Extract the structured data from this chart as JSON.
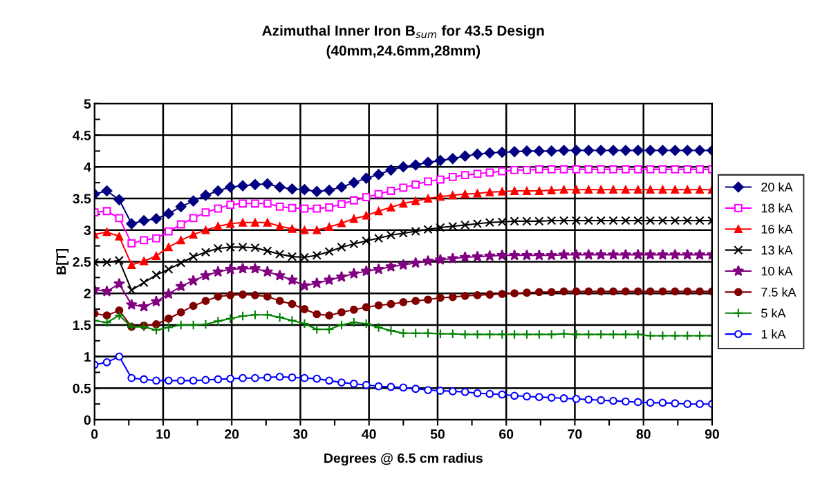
{
  "chart_data": {
    "type": "line",
    "title": "Azimuthal Inner Iron B$_{sum}$ for 43.5 Design\n(40mm,24.6mm,28mm)",
    "xlabel": "Degrees @ 6.5 cm radius",
    "ylabel": "B[T]",
    "x": [
      0,
      1.8,
      3.6,
      5.4,
      7.2,
      9,
      10.8,
      12.6,
      14.4,
      16.2,
      18,
      19.8,
      21.6,
      23.4,
      25.2,
      27,
      28.8,
      30.6,
      32.4,
      34.2,
      36,
      37.8,
      39.6,
      41.4,
      43.2,
      45,
      46.8,
      48.6,
      50.4,
      52.2,
      54,
      55.8,
      57.6,
      59.4,
      61.2,
      63,
      64.8,
      66.6,
      68.4,
      70.2,
      72,
      73.8,
      75.6,
      77.4,
      79.2,
      81,
      82.8,
      84.6,
      86.4,
      88.2,
      90
    ],
    "series": [
      {
        "name": "20 kA",
        "color": "#000080",
        "marker": "diamond",
        "values": [
          3.57,
          3.62,
          3.48,
          3.1,
          3.15,
          3.18,
          3.26,
          3.37,
          3.46,
          3.55,
          3.62,
          3.68,
          3.7,
          3.72,
          3.73,
          3.68,
          3.65,
          3.64,
          3.61,
          3.63,
          3.68,
          3.75,
          3.82,
          3.88,
          3.95,
          4.0,
          4.03,
          4.07,
          4.1,
          4.13,
          4.17,
          4.2,
          4.22,
          4.23,
          4.24,
          4.25,
          4.25,
          4.25,
          4.26,
          4.26,
          4.26,
          4.26,
          4.26,
          4.26,
          4.26,
          4.26,
          4.26,
          4.26,
          4.26,
          4.26,
          4.26
        ]
      },
      {
        "name": "18 kA",
        "color": "#ff00ff",
        "marker": "square-open",
        "values": [
          3.28,
          3.3,
          3.19,
          2.79,
          2.84,
          2.87,
          2.98,
          3.09,
          3.19,
          3.28,
          3.34,
          3.4,
          3.42,
          3.42,
          3.42,
          3.37,
          3.35,
          3.34,
          3.34,
          3.36,
          3.41,
          3.47,
          3.52,
          3.57,
          3.62,
          3.67,
          3.72,
          3.77,
          3.8,
          3.84,
          3.87,
          3.89,
          3.91,
          3.93,
          3.95,
          3.95,
          3.96,
          3.96,
          3.96,
          3.96,
          3.96,
          3.96,
          3.96,
          3.96,
          3.96,
          3.96,
          3.96,
          3.96,
          3.96,
          3.96,
          3.96
        ]
      },
      {
        "name": "16 kA",
        "color": "#ff0000",
        "marker": "triangle",
        "values": [
          2.93,
          2.97,
          2.9,
          2.45,
          2.51,
          2.59,
          2.73,
          2.84,
          2.93,
          3.0,
          3.06,
          3.1,
          3.12,
          3.12,
          3.12,
          3.06,
          3.02,
          3.0,
          3.0,
          3.05,
          3.11,
          3.18,
          3.23,
          3.3,
          3.36,
          3.42,
          3.46,
          3.5,
          3.53,
          3.55,
          3.57,
          3.58,
          3.6,
          3.61,
          3.62,
          3.62,
          3.62,
          3.63,
          3.64,
          3.64,
          3.64,
          3.64,
          3.64,
          3.64,
          3.64,
          3.64,
          3.64,
          3.64,
          3.64,
          3.64,
          3.64
        ]
      },
      {
        "name": "13 kA",
        "color": "#000000",
        "marker": "cross",
        "values": [
          2.49,
          2.49,
          2.52,
          2.05,
          2.17,
          2.29,
          2.38,
          2.48,
          2.58,
          2.65,
          2.71,
          2.73,
          2.73,
          2.72,
          2.67,
          2.62,
          2.58,
          2.57,
          2.6,
          2.66,
          2.73,
          2.78,
          2.83,
          2.87,
          2.92,
          2.95,
          2.98,
          3.01,
          3.04,
          3.06,
          3.08,
          3.1,
          3.12,
          3.13,
          3.14,
          3.14,
          3.14,
          3.15,
          3.15,
          3.15,
          3.15,
          3.15,
          3.15,
          3.15,
          3.15,
          3.15,
          3.15,
          3.15,
          3.15,
          3.15,
          3.15
        ]
      },
      {
        "name": "10 kA",
        "color": "#800080",
        "marker": "star",
        "values": [
          2.06,
          2.03,
          2.15,
          1.82,
          1.79,
          1.87,
          1.99,
          2.11,
          2.2,
          2.28,
          2.34,
          2.38,
          2.39,
          2.39,
          2.34,
          2.28,
          2.21,
          2.12,
          2.16,
          2.21,
          2.26,
          2.31,
          2.35,
          2.38,
          2.42,
          2.45,
          2.48,
          2.51,
          2.53,
          2.55,
          2.57,
          2.58,
          2.59,
          2.6,
          2.6,
          2.6,
          2.6,
          2.6,
          2.61,
          2.61,
          2.61,
          2.61,
          2.61,
          2.61,
          2.61,
          2.61,
          2.61,
          2.61,
          2.61,
          2.61,
          2.61
        ]
      },
      {
        "name": "7.5 kA",
        "color": "#800000",
        "marker": "circle",
        "values": [
          1.68,
          1.65,
          1.73,
          1.47,
          1.49,
          1.51,
          1.6,
          1.7,
          1.8,
          1.88,
          1.95,
          1.97,
          1.98,
          1.97,
          1.95,
          1.88,
          1.83,
          1.75,
          1.67,
          1.65,
          1.7,
          1.74,
          1.78,
          1.81,
          1.83,
          1.86,
          1.88,
          1.9,
          1.93,
          1.94,
          1.96,
          1.97,
          1.98,
          1.99,
          2.0,
          2.01,
          2.02,
          2.02,
          2.03,
          2.03,
          2.03,
          2.03,
          2.03,
          2.03,
          2.03,
          2.03,
          2.03,
          2.03,
          2.03,
          2.03,
          2.03
        ]
      },
      {
        "name": "5 kA",
        "color": "#008000",
        "marker": "plus",
        "values": [
          1.57,
          1.54,
          1.65,
          1.47,
          1.47,
          1.42,
          1.46,
          1.5,
          1.5,
          1.51,
          1.56,
          1.6,
          1.64,
          1.66,
          1.66,
          1.62,
          1.57,
          1.52,
          1.43,
          1.43,
          1.5,
          1.54,
          1.52,
          1.46,
          1.41,
          1.37,
          1.37,
          1.37,
          1.36,
          1.36,
          1.35,
          1.35,
          1.35,
          1.35,
          1.35,
          1.35,
          1.35,
          1.35,
          1.36,
          1.35,
          1.35,
          1.35,
          1.35,
          1.35,
          1.35,
          1.33,
          1.33,
          1.33,
          1.33,
          1.33,
          1.33
        ]
      },
      {
        "name": "1 kA",
        "color": "#0000ff",
        "marker": "circle-open",
        "values": [
          0.87,
          0.91,
          1.0,
          0.66,
          0.64,
          0.62,
          0.62,
          0.62,
          0.62,
          0.63,
          0.64,
          0.65,
          0.66,
          0.66,
          0.67,
          0.68,
          0.67,
          0.66,
          0.65,
          0.62,
          0.59,
          0.57,
          0.55,
          0.53,
          0.52,
          0.51,
          0.49,
          0.47,
          0.46,
          0.45,
          0.44,
          0.42,
          0.41,
          0.4,
          0.38,
          0.37,
          0.36,
          0.35,
          0.34,
          0.33,
          0.32,
          0.31,
          0.3,
          0.29,
          0.28,
          0.27,
          0.27,
          0.26,
          0.25,
          0.25,
          0.25
        ]
      }
    ],
    "xlim": [
      0,
      90
    ],
    "xticks": [
      0,
      {
        "value": 5,
        "label": null
      },
      10,
      {
        "value": 15,
        "label": null
      },
      20,
      {
        "value": 25,
        "label": null
      },
      30,
      {
        "value": 35,
        "label": null
      },
      40,
      {
        "value": 45,
        "label": null
      },
      50,
      {
        "value": 55,
        "label": null
      },
      60,
      {
        "value": 65,
        "label": null
      },
      70,
      {
        "value": 75,
        "label": null
      },
      80,
      {
        "value": 85,
        "label": null
      },
      90
    ],
    "ylim": [
      0,
      5
    ],
    "yticks": [
      0,
      {
        "value": 0.25,
        "label": null
      },
      0.5,
      {
        "value": 0.75,
        "label": null
      },
      1,
      {
        "value": 1.25,
        "label": null
      },
      1.5,
      {
        "value": 1.75,
        "label": null
      },
      2,
      {
        "value": 2.25,
        "label": null
      },
      2.5,
      {
        "value": 2.75,
        "label": null
      },
      3,
      {
        "value": 3.25,
        "label": null
      },
      3.5,
      {
        "value": 3.75,
        "label": null
      },
      4,
      {
        "value": 4.25,
        "label": null
      },
      4.5,
      {
        "value": 4.75,
        "label": null
      },
      5
    ],
    "grid": true,
    "legend": "right",
    "line_style": "solid"
  }
}
